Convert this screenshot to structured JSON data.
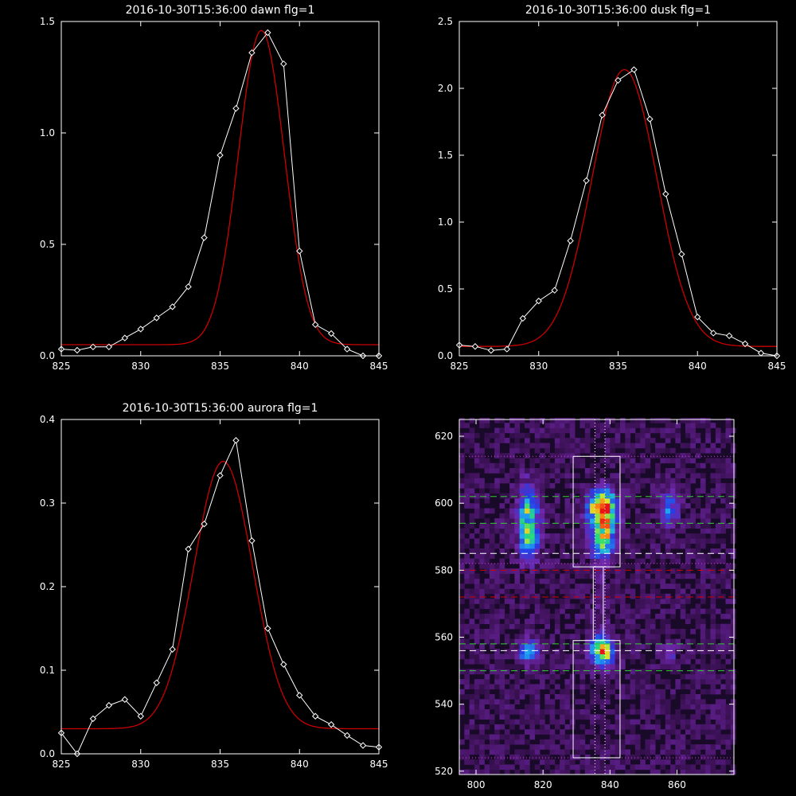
{
  "colors": {
    "background": "#000000",
    "observed": "#ffffff",
    "fit": "#cc0000",
    "axis": "#ffffff",
    "green_dash": "#33cc33",
    "red_dash": "#cc0000",
    "white_dash": "#ffffff",
    "magenta_dot": "#cc44cc",
    "image_bg": "#1a0a2a"
  },
  "chart_data": [
    {
      "type": "line",
      "title": "2016-10-30T15:36:00 dawn flg=1",
      "xlim": [
        825,
        845
      ],
      "ylim": [
        0,
        1.5
      ],
      "xticks": [
        "825",
        "830",
        "835",
        "840",
        "845"
      ],
      "yticks": [
        "0.0",
        "0.5",
        "1.0",
        "1.5"
      ],
      "series": [
        {
          "x": [
            825,
            826,
            827,
            828,
            829,
            830,
            831,
            832,
            833,
            834,
            835,
            836,
            837,
            838,
            839,
            840,
            841,
            842,
            843,
            844,
            845
          ],
          "values": [
            0.03,
            0.025,
            0.04,
            0.04,
            0.08,
            0.12,
            0.17,
            0.22,
            0.31,
            0.53,
            0.9,
            1.11,
            1.36,
            1.45,
            1.31,
            0.47,
            0.14,
            0.1,
            0.03,
            0.0,
            0.0
          ]
        },
        {
          "fit": {
            "peak": 1.41,
            "center": 837.6,
            "sigma": 1.45,
            "base": 0.05
          }
        }
      ]
    },
    {
      "type": "line",
      "title": "2016-10-30T15:36:00 dusk flg=1",
      "xlim": [
        825,
        845
      ],
      "ylim": [
        0,
        2.5
      ],
      "xticks": [
        "825",
        "830",
        "835",
        "840",
        "845"
      ],
      "yticks": [
        "0.0",
        "0.5",
        "1.0",
        "1.5",
        "2.0",
        "2.5"
      ],
      "series": [
        {
          "x": [
            825,
            826,
            827,
            828,
            829,
            830,
            831,
            832,
            833,
            834,
            835,
            836,
            837,
            838,
            839,
            840,
            841,
            842,
            843,
            844,
            845
          ],
          "values": [
            0.08,
            0.07,
            0.04,
            0.05,
            0.28,
            0.41,
            0.49,
            0.86,
            1.31,
            1.8,
            2.06,
            2.14,
            1.77,
            1.21,
            0.76,
            0.29,
            0.17,
            0.15,
            0.09,
            0.02,
            0.0
          ]
        },
        {
          "fit": {
            "peak": 2.07,
            "center": 835.4,
            "sigma": 2.05,
            "base": 0.07
          }
        }
      ]
    },
    {
      "type": "line",
      "title": "2016-10-30T15:36:00 aurora flg=1",
      "xlim": [
        825,
        845
      ],
      "ylim": [
        0,
        0.4
      ],
      "xticks": [
        "825",
        "830",
        "835",
        "840",
        "845"
      ],
      "yticks": [
        "0.0",
        "0.1",
        "0.2",
        "0.3",
        "0.4"
      ],
      "series": [
        {
          "x": [
            825,
            826,
            827,
            828,
            829,
            830,
            831,
            832,
            833,
            834,
            835,
            836,
            837,
            838,
            839,
            840,
            841,
            842,
            843,
            844,
            845
          ],
          "values": [
            0.025,
            0.0,
            0.042,
            0.058,
            0.065,
            0.045,
            0.085,
            0.125,
            0.245,
            0.275,
            0.333,
            0.375,
            0.255,
            0.15,
            0.107,
            0.07,
            0.045,
            0.035,
            0.022,
            0.01,
            0.008
          ]
        },
        {
          "fit": {
            "peak": 0.32,
            "center": 835.2,
            "sigma": 1.85,
            "base": 0.03
          }
        }
      ]
    },
    {
      "type": "heatmap",
      "xlim": [
        795,
        877
      ],
      "ylim": [
        519,
        625
      ],
      "xticks": [
        "800",
        "820",
        "840",
        "860"
      ],
      "yticks": [
        "520",
        "540",
        "560",
        "580",
        "600",
        "620"
      ],
      "blobs": [
        {
          "x": 815,
          "y": 596,
          "sx": 2.2,
          "sy": 6,
          "amp": 0.55
        },
        {
          "x": 815,
          "y": 587,
          "sx": 2,
          "sy": 4,
          "amp": 0.35
        },
        {
          "x": 837,
          "y": 598,
          "sx": 2.8,
          "sy": 3.5,
          "amp": 1.0
        },
        {
          "x": 837,
          "y": 589,
          "sx": 2.5,
          "sy": 4,
          "amp": 0.7
        },
        {
          "x": 837,
          "y": 555,
          "sx": 2.4,
          "sy": 2.8,
          "amp": 0.85
        },
        {
          "x": 815,
          "y": 555,
          "sx": 2,
          "sy": 2.5,
          "amp": 0.5
        },
        {
          "x": 857,
          "y": 598,
          "sx": 1.8,
          "sy": 4,
          "amp": 0.4
        },
        {
          "x": 857,
          "y": 555,
          "sx": 1.8,
          "sy": 2.5,
          "amp": 0.2
        },
        {
          "x": 837,
          "y": 572,
          "sx": 1.5,
          "sy": 8,
          "amp": 0.12
        }
      ],
      "h_dashed_green": [
        602,
        594,
        558,
        550
      ],
      "h_dashed_white": [
        585,
        556
      ],
      "h_dashed_red": [
        580,
        572
      ],
      "h_dotted_magenta": [
        614,
        582,
        524
      ],
      "v_dotted": [
        835.5,
        838.5
      ],
      "boxes": [
        {
          "x0": 829,
          "x1": 843,
          "y0": 581,
          "y1": 614
        },
        {
          "x0": 829,
          "x1": 843,
          "y0": 524,
          "y1": 559
        },
        {
          "x0": 835,
          "x1": 838,
          "y0": 559,
          "y1": 581
        }
      ]
    }
  ]
}
